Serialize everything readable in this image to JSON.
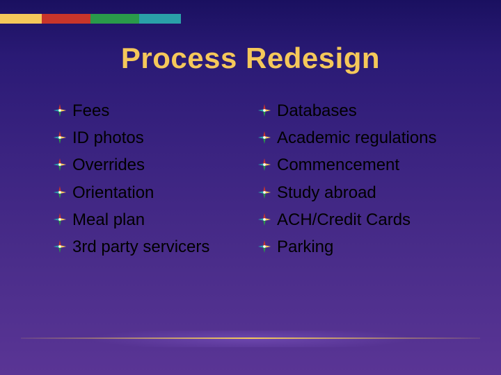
{
  "title": "Process Redesign",
  "title_color": "#f5c85a",
  "title_fontsize": 42,
  "item_fontsize": 24,
  "item_text_color": "#000000",
  "background_gradient": [
    "#1a1060",
    "#2a1a75",
    "#3a2380",
    "#4a2d8a",
    "#5a3595"
  ],
  "top_stripe_colors": [
    "#f5c85a",
    "#c8352a",
    "#2a9a4a",
    "#2aa0a8"
  ],
  "left_column": [
    "Fees",
    "ID photos",
    "Overrides",
    "Orientation",
    "Meal plan",
    "3rd party servicers"
  ],
  "right_column": [
    "Databases",
    "Academic regulations",
    "Commencement",
    "Study abroad",
    "ACH/Credit Cards",
    "Parking"
  ],
  "bullet_icon": {
    "type": "compass-cross",
    "colors": {
      "north": "#c8352a",
      "east": "#f5c85a",
      "south": "#2a9a4a",
      "west": "#2aa0a8",
      "center": "#ffffff"
    }
  }
}
